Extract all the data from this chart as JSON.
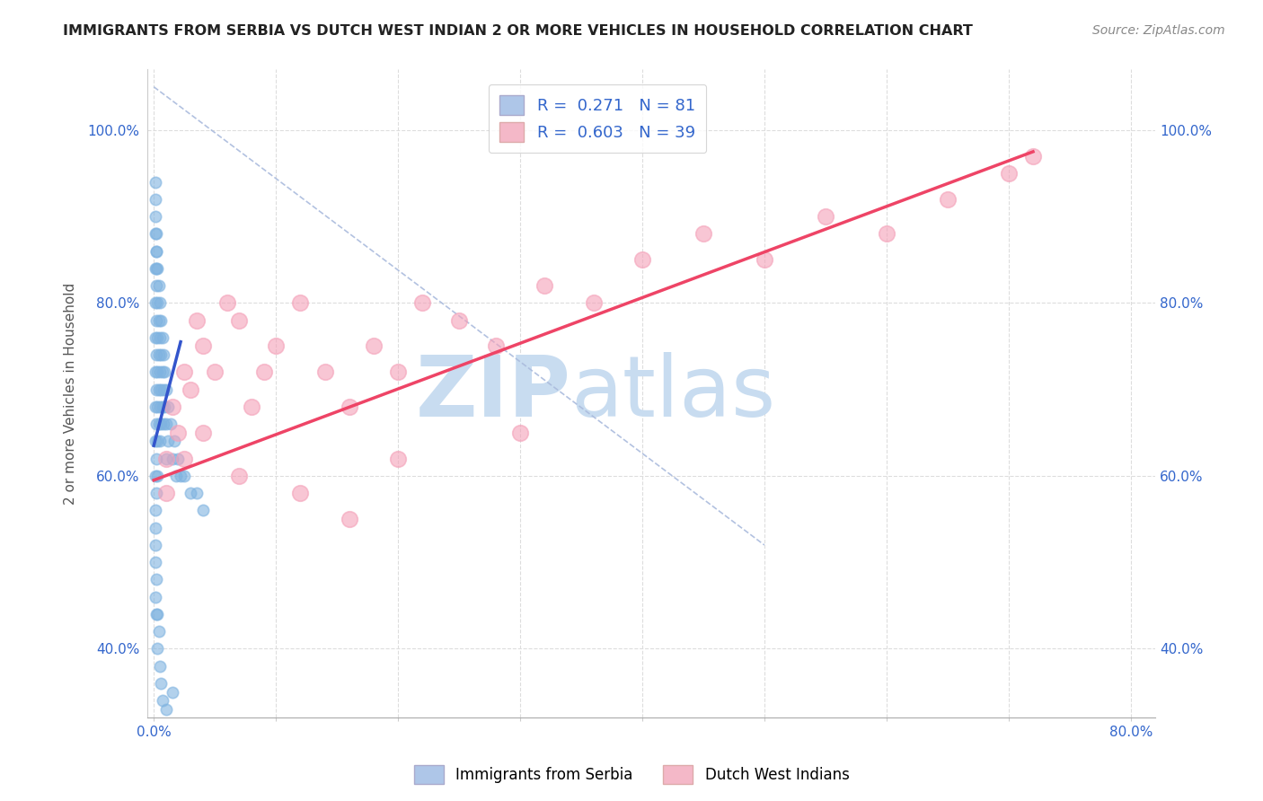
{
  "title": "IMMIGRANTS FROM SERBIA VS DUTCH WEST INDIAN 2 OR MORE VEHICLES IN HOUSEHOLD CORRELATION CHART",
  "source": "Source: ZipAtlas.com",
  "ylabel": "2 or more Vehicles in Household",
  "xlim": [
    -0.005,
    0.82
  ],
  "ylim": [
    0.32,
    1.07
  ],
  "xticks": [
    0.0,
    0.1,
    0.2,
    0.3,
    0.4,
    0.5,
    0.6,
    0.7,
    0.8
  ],
  "yticks": [
    0.4,
    0.6,
    0.8,
    1.0
  ],
  "ytick_labels": [
    "40.0%",
    "60.0%",
    "80.0%",
    "100.0%"
  ],
  "xtick_labels": [
    "0.0%",
    "",
    "",
    "",
    "",
    "",
    "",
    "",
    "80.0%"
  ],
  "serbia_scatter_color": "#7fb3e0",
  "dwi_scatter_color": "#f4a0b8",
  "serbia_line_color": "#3355cc",
  "dwi_line_color": "#ee4466",
  "diag_line_color": "#aabbdd",
  "watermark_zip": "ZIP",
  "watermark_atlas": "atlas",
  "watermark_color_zip": "#c8dcf0",
  "watermark_color_atlas": "#c8dcf0",
  "background_color": "#ffffff",
  "grid_color": "#dddddd",
  "serbia_x": [
    0.001,
    0.001,
    0.001,
    0.001,
    0.001,
    0.001,
    0.001,
    0.001,
    0.001,
    0.001,
    0.002,
    0.002,
    0.002,
    0.002,
    0.002,
    0.002,
    0.002,
    0.002,
    0.003,
    0.003,
    0.003,
    0.003,
    0.003,
    0.003,
    0.003,
    0.004,
    0.004,
    0.004,
    0.004,
    0.004,
    0.005,
    0.005,
    0.005,
    0.005,
    0.005,
    0.006,
    0.006,
    0.006,
    0.006,
    0.007,
    0.007,
    0.007,
    0.008,
    0.008,
    0.008,
    0.009,
    0.009,
    0.01,
    0.01,
    0.01,
    0.012,
    0.012,
    0.014,
    0.015,
    0.017,
    0.018,
    0.02,
    0.022,
    0.025,
    0.03,
    0.035,
    0.04,
    0.001,
    0.001,
    0.001,
    0.002,
    0.002,
    0.003,
    0.003,
    0.004,
    0.005,
    0.006,
    0.007,
    0.001,
    0.001,
    0.001,
    0.002,
    0.002,
    0.002,
    0.01,
    0.015
  ],
  "serbia_y": [
    0.88,
    0.84,
    0.8,
    0.76,
    0.72,
    0.68,
    0.64,
    0.6,
    0.56,
    0.52,
    0.86,
    0.82,
    0.78,
    0.74,
    0.7,
    0.66,
    0.62,
    0.58,
    0.84,
    0.8,
    0.76,
    0.72,
    0.68,
    0.64,
    0.6,
    0.82,
    0.78,
    0.74,
    0.7,
    0.66,
    0.8,
    0.76,
    0.72,
    0.68,
    0.64,
    0.78,
    0.74,
    0.7,
    0.66,
    0.76,
    0.72,
    0.68,
    0.74,
    0.7,
    0.66,
    0.72,
    0.68,
    0.7,
    0.66,
    0.62,
    0.68,
    0.64,
    0.66,
    0.62,
    0.64,
    0.6,
    0.62,
    0.6,
    0.6,
    0.58,
    0.58,
    0.56,
    0.54,
    0.5,
    0.46,
    0.48,
    0.44,
    0.44,
    0.4,
    0.42,
    0.38,
    0.36,
    0.34,
    0.9,
    0.92,
    0.94,
    0.88,
    0.86,
    0.84,
    0.33,
    0.35
  ],
  "dwi_x": [
    0.01,
    0.015,
    0.02,
    0.025,
    0.03,
    0.035,
    0.04,
    0.05,
    0.06,
    0.07,
    0.08,
    0.09,
    0.1,
    0.12,
    0.14,
    0.16,
    0.18,
    0.2,
    0.22,
    0.25,
    0.28,
    0.32,
    0.36,
    0.4,
    0.45,
    0.5,
    0.55,
    0.6,
    0.65,
    0.7,
    0.01,
    0.025,
    0.04,
    0.07,
    0.12,
    0.16,
    0.2,
    0.3,
    0.72
  ],
  "dwi_y": [
    0.62,
    0.68,
    0.65,
    0.72,
    0.7,
    0.78,
    0.75,
    0.72,
    0.8,
    0.78,
    0.68,
    0.72,
    0.75,
    0.8,
    0.72,
    0.68,
    0.75,
    0.72,
    0.8,
    0.78,
    0.75,
    0.82,
    0.8,
    0.85,
    0.88,
    0.85,
    0.9,
    0.88,
    0.92,
    0.95,
    0.58,
    0.62,
    0.65,
    0.6,
    0.58,
    0.55,
    0.62,
    0.65,
    0.97
  ],
  "serbia_scatter_size": 80,
  "dwi_scatter_size": 160,
  "serbia_line_x0": 0.0,
  "serbia_line_x1": 0.022,
  "serbia_line_y0": 0.635,
  "serbia_line_y1": 0.755,
  "dwi_line_x0": 0.0,
  "dwi_line_x1": 0.72,
  "dwi_line_y0": 0.595,
  "dwi_line_y1": 0.975
}
